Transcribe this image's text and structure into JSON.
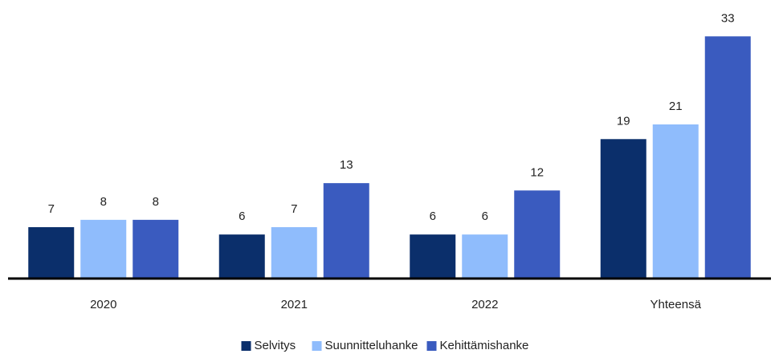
{
  "chart_data": {
    "type": "bar",
    "categories": [
      "2020",
      "2021",
      "2022",
      "Yhteensä"
    ],
    "series": [
      {
        "name": "Selvitys",
        "color": "#0b2f6b",
        "values": [
          7,
          6,
          6,
          19
        ]
      },
      {
        "name": "Suunnitteluhanke",
        "color": "#8fbcfc",
        "values": [
          8,
          7,
          6,
          21
        ]
      },
      {
        "name": "Kehittämishanke",
        "color": "#3a5bbf",
        "values": [
          8,
          13,
          12,
          33
        ]
      }
    ],
    "ylim": [
      0,
      35
    ],
    "legend": "bottom"
  }
}
